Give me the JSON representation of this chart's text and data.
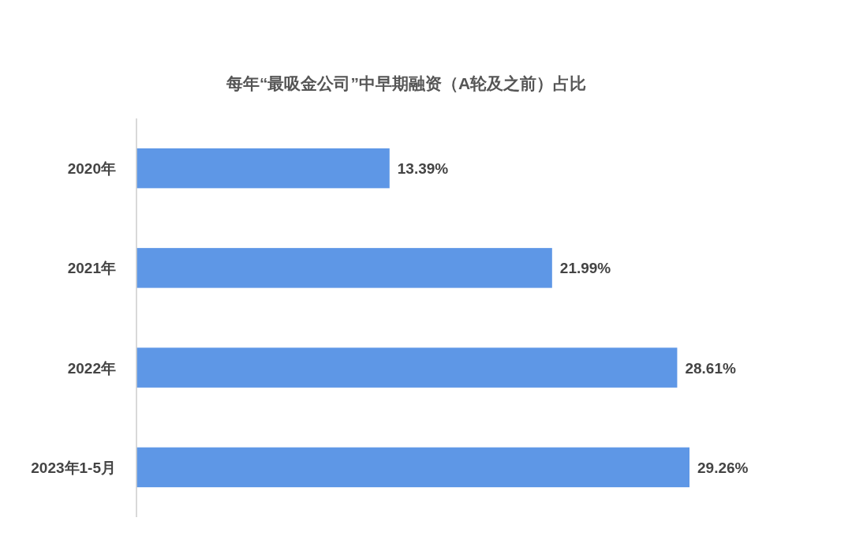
{
  "chart_data": {
    "type": "bar",
    "orientation": "horizontal",
    "title": "每年“最吸金公司”中早期融资（A轮及之前）占比",
    "categories": [
      "2020年",
      "2021年",
      "2022年",
      "2023年1-5月"
    ],
    "series": [
      {
        "color": "#5e97e6",
        "values": [
          13.39,
          21.99,
          28.61,
          29.26
        ],
        "value_labels": [
          "13.39%",
          "21.99%",
          "28.61%",
          "29.26%"
        ]
      }
    ]
  }
}
